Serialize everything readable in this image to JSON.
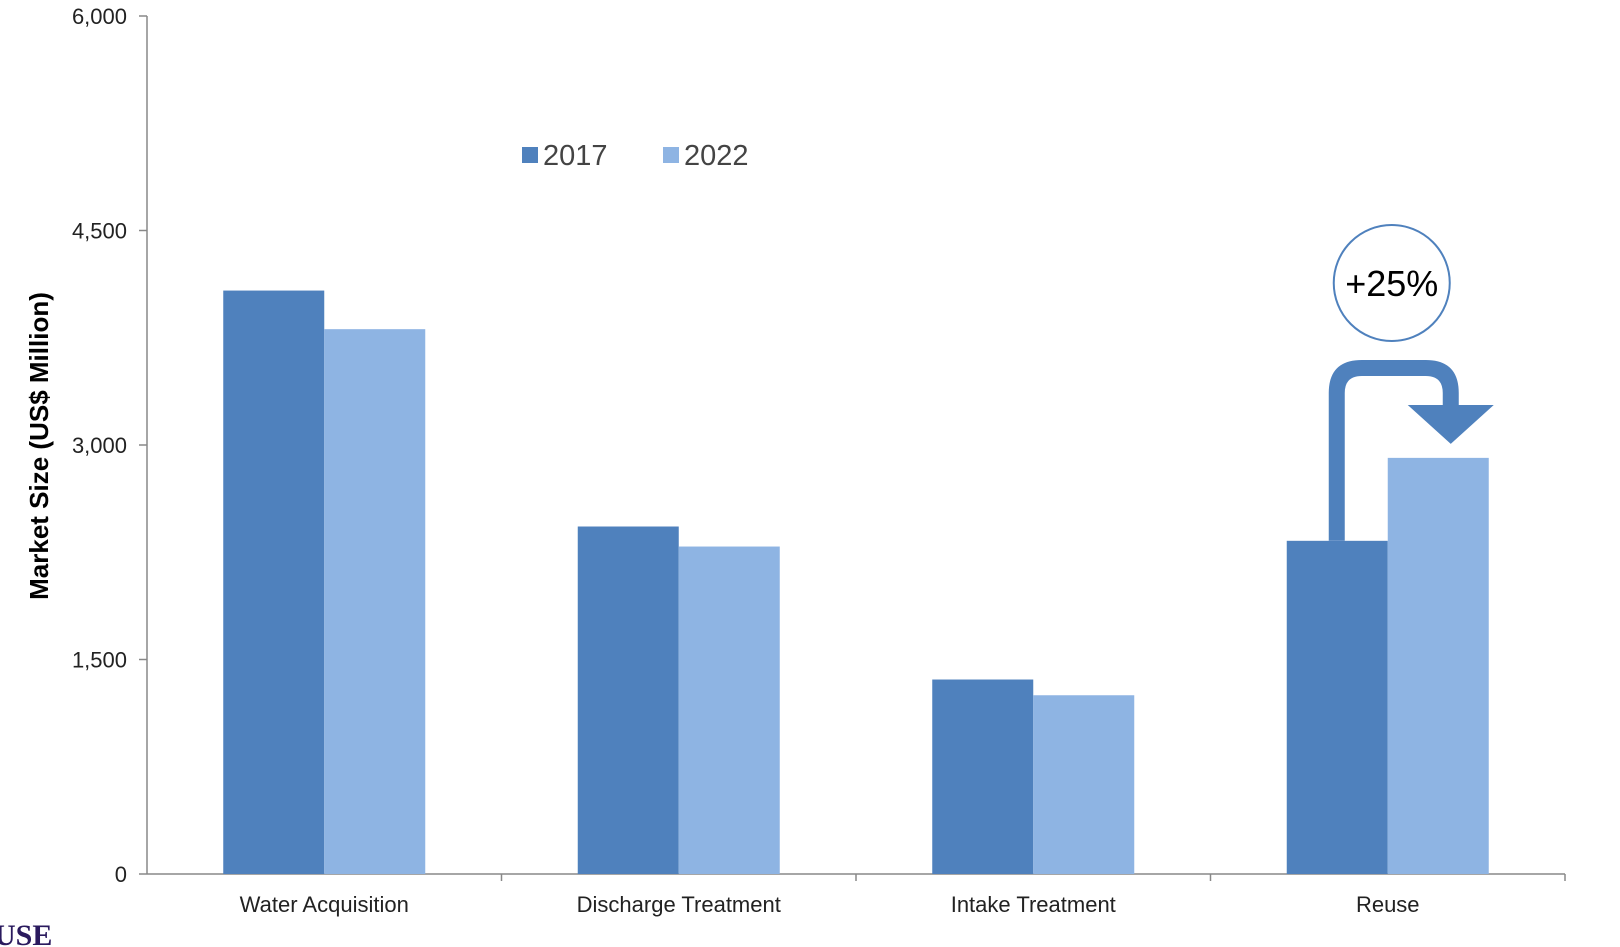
{
  "chart_data": {
    "type": "bar",
    "categories": [
      "Water Acquisition",
      "Discharge Treatment",
      "Intake Treatment",
      "Reuse"
    ],
    "series": [
      {
        "name": "2017",
        "values": [
          4080,
          2430,
          1360,
          2330
        ],
        "color": "#4F81BD"
      },
      {
        "name": "2022",
        "values": [
          3810,
          2290,
          1250,
          2910
        ],
        "color": "#8EB4E3"
      }
    ],
    "title": "",
    "xlabel": "",
    "ylabel": "Market Size (US$ Million)",
    "ylim": [
      0,
      6000
    ],
    "yticks": [
      0,
      1500,
      3000,
      4500,
      6000
    ],
    "ytick_labels": [
      "0",
      "1,500",
      "3,000",
      "4,500",
      "6,000"
    ],
    "grid": false,
    "legend_position": "top-center",
    "annotation": {
      "text": "+25%",
      "category": "Reuse",
      "color": "#4F81BD"
    },
    "logo_text": "USE"
  }
}
